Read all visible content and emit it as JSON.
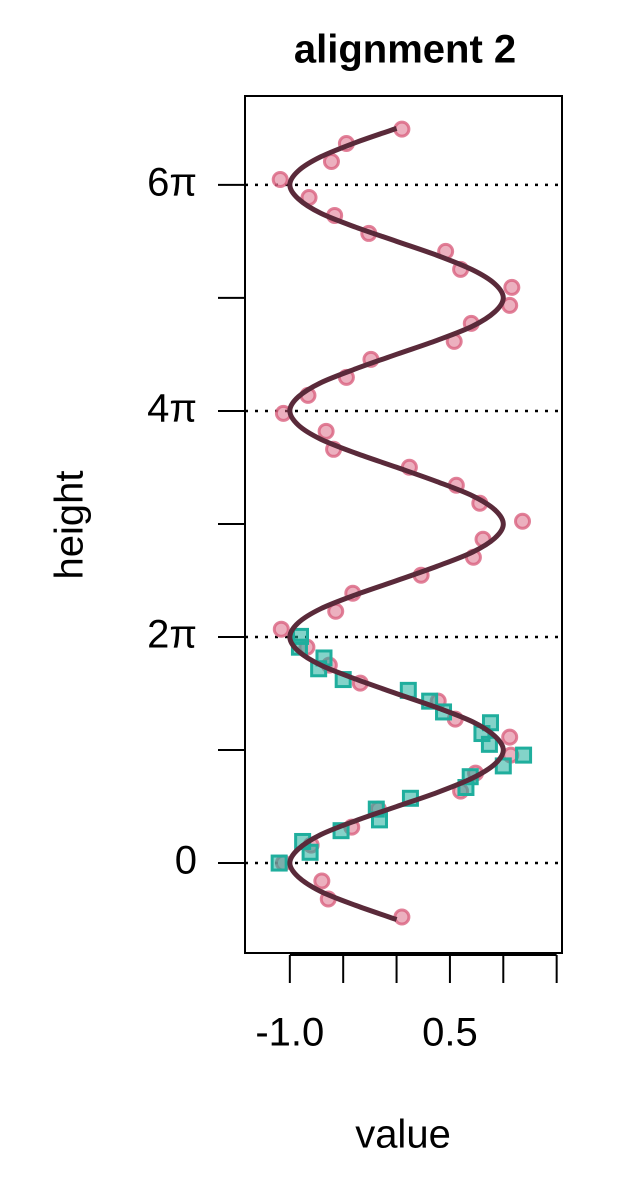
{
  "chart_data": {
    "type": "scatter",
    "title": "alignment 2",
    "x_label": "value",
    "y_label": "height",
    "xlim": [
      -1.42,
      1.55
    ],
    "ylim": [
      -2.5,
      21.32
    ],
    "xticks": [
      {
        "value": -1.0,
        "label": "-1.0"
      },
      {
        "value": 0.5,
        "label": "0.5"
      }
    ],
    "xticks_unlabeled": [
      -0.5,
      0,
      1.0,
      1.5
    ],
    "yticks": [
      0,
      {
        "value": 6.2832,
        "label": "2π"
      },
      {
        "value": 12.5664,
        "label": "4π"
      },
      {
        "value": 18.8496,
        "label": "6π"
      }
    ],
    "yticks_unlabeled": [
      3.1416,
      9.4248,
      15.708
    ],
    "grid": true,
    "series": [
      {
        "color": "#d9627f",
        "marker": "circle",
        "x": [
          0.05,
          -0.64,
          -0.7,
          -1.06,
          -0.8,
          -0.42,
          -0.17,
          0.6,
          0.74,
          1.07,
          1.06,
          0.55,
          0.39,
          -0.34,
          -0.63,
          -0.84,
          -1.08,
          -0.57,
          -0.41,
          0.23,
          0.72,
          0.81,
          1.18,
          0.78,
          0.56,
          0.12,
          -0.59,
          -0.66,
          -1.06,
          -0.83,
          -0.47,
          -0.24,
          0.54,
          0.7,
          1.06,
          1.08,
          0.6,
          0.46,
          -0.26,
          -0.58,
          -0.82,
          -1.09,
          -0.61,
          -0.47,
          0.05
        ],
        "y": [
          -1.5,
          -1.0,
          -0.5,
          0,
          0.5,
          1,
          1.5,
          2,
          2.5,
          3,
          3.5,
          4,
          4.5,
          5,
          5.5,
          6,
          6.5,
          7,
          7.5,
          8,
          8.5,
          9,
          9.5,
          10,
          10.5,
          11,
          11.5,
          12,
          12.5,
          13,
          13.5,
          14,
          14.5,
          15,
          15.5,
          16,
          16.5,
          17,
          17.5,
          18,
          18.5,
          19,
          19.5,
          20,
          20.4
        ]
      },
      {
        "color": "#1fae9d",
        "marker": "square",
        "x": [
          -1.1,
          -0.81,
          -0.88,
          -0.52,
          -0.16,
          -0.19,
          0.13,
          0.65,
          0.69,
          1.0,
          1.19,
          0.87,
          0.8,
          0.88,
          0.44,
          0.31,
          0.11,
          -0.5,
          -0.73,
          -0.68,
          -0.91,
          -0.9
        ],
        "y": [
          0,
          0.3,
          0.6,
          0.9,
          1.2,
          1.5,
          1.8,
          2.1,
          2.4,
          2.7,
          3.0,
          3.3,
          3.6,
          3.9,
          4.2,
          4.5,
          4.8,
          5.1,
          5.4,
          5.7,
          6.0,
          6.3
        ]
      }
    ],
    "line": {
      "color": "#5a2a3a",
      "x": [
        0,
        -0.38,
        -0.71,
        -0.92,
        -1,
        -0.92,
        -0.71,
        -0.38,
        0,
        0.38,
        0.71,
        0.92,
        1,
        0.92,
        0.71,
        0.38,
        0,
        -0.38,
        -0.71,
        -0.92,
        -1,
        -0.92,
        -0.71,
        -0.38,
        0,
        0.38,
        0.71,
        0.92,
        1,
        0.92,
        0.71,
        0.38,
        0,
        -0.38,
        -0.71,
        -0.92,
        -1,
        -0.92,
        -0.71,
        -0.38,
        0,
        0.38,
        0.71,
        0.92,
        1,
        0.92,
        0.71,
        0.38,
        0,
        -0.38,
        -0.71,
        -0.92,
        -1,
        -0.92,
        -0.71,
        -0.38,
        0
      ],
      "y": [
        -1.57,
        -1.18,
        -0.79,
        -0.39,
        0,
        0.39,
        0.79,
        1.18,
        1.57,
        1.96,
        2.36,
        2.75,
        3.14,
        3.53,
        3.93,
        4.32,
        4.71,
        5.11,
        5.5,
        5.89,
        6.28,
        6.68,
        7.07,
        7.46,
        7.85,
        8.25,
        8.64,
        9.03,
        9.42,
        9.82,
        10.21,
        10.6,
        11.0,
        11.39,
        11.78,
        12.17,
        12.57,
        12.96,
        13.35,
        13.74,
        14.14,
        14.53,
        14.92,
        15.32,
        15.71,
        16.1,
        16.49,
        16.89,
        17.28,
        17.67,
        18.06,
        18.46,
        18.85,
        19.24,
        19.63,
        20.03,
        20.42
      ]
    }
  }
}
